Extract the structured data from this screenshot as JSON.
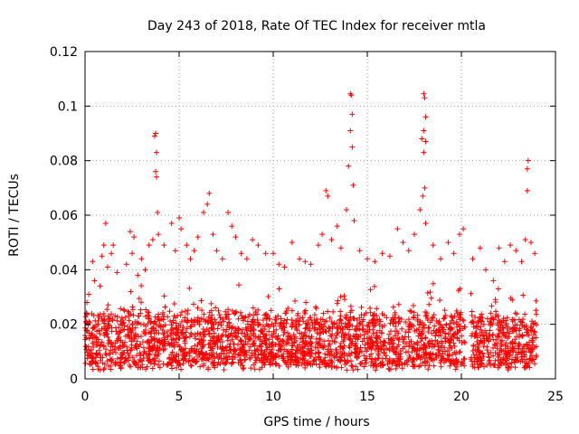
{
  "chart_data": {
    "type": "scatter",
    "title": "Day 243 of 2018, Rate Of TEC Index for receiver mtla",
    "xlabel": "GPS time / hours",
    "ylabel": "ROTI / TECUs",
    "xlim": [
      0,
      25
    ],
    "ylim": [
      0,
      0.12
    ],
    "x_ticks": [
      0,
      5,
      10,
      15,
      20,
      25
    ],
    "x_tick_labels": [
      "0",
      "5",
      "10",
      "15",
      "20",
      "25"
    ],
    "y_ticks": [
      0,
      0.02,
      0.04,
      0.06,
      0.08,
      0.1,
      0.12
    ],
    "y_tick_labels": [
      "0",
      "0.02",
      "0.04",
      "0.06",
      "0.08",
      "0.1",
      "0.12"
    ],
    "grid": true,
    "marker": "+",
    "color": "#ff0000",
    "data_gap_hours": [
      20.2,
      20.5
    ],
    "series": [
      {
        "name": "ROTI",
        "points": [
          [
            0.1,
            0.028
          ],
          [
            0.2,
            0.031
          ],
          [
            0.4,
            0.043
          ],
          [
            0.5,
            0.036
          ],
          [
            0.8,
            0.034
          ],
          [
            0.9,
            0.045
          ],
          [
            1.0,
            0.049
          ],
          [
            1.1,
            0.057
          ],
          [
            1.2,
            0.041
          ],
          [
            1.4,
            0.046
          ],
          [
            1.5,
            0.049
          ],
          [
            1.7,
            0.039
          ],
          [
            2.2,
            0.042
          ],
          [
            2.4,
            0.054
          ],
          [
            2.5,
            0.046
          ],
          [
            2.6,
            0.052
          ],
          [
            2.8,
            0.038
          ],
          [
            3.0,
            0.044
          ],
          [
            3.2,
            0.04
          ],
          [
            3.4,
            0.049
          ],
          [
            3.6,
            0.051
          ],
          [
            3.7,
            0.089
          ],
          [
            3.75,
            0.09
          ],
          [
            3.8,
            0.083
          ],
          [
            3.75,
            0.076
          ],
          [
            3.8,
            0.074
          ],
          [
            3.85,
            0.061
          ],
          [
            3.9,
            0.053
          ],
          [
            4.2,
            0.049
          ],
          [
            4.6,
            0.057
          ],
          [
            4.8,
            0.047
          ],
          [
            5.0,
            0.059
          ],
          [
            5.1,
            0.055
          ],
          [
            5.4,
            0.049
          ],
          [
            5.6,
            0.044
          ],
          [
            5.8,
            0.047
          ],
          [
            6.0,
            0.052
          ],
          [
            6.3,
            0.061
          ],
          [
            6.5,
            0.064
          ],
          [
            6.6,
            0.068
          ],
          [
            6.8,
            0.053
          ],
          [
            7.0,
            0.047
          ],
          [
            7.3,
            0.044
          ],
          [
            7.6,
            0.061
          ],
          [
            7.8,
            0.056
          ],
          [
            8.0,
            0.052
          ],
          [
            8.3,
            0.046
          ],
          [
            8.6,
            0.044
          ],
          [
            8.9,
            0.051
          ],
          [
            9.2,
            0.049
          ],
          [
            9.6,
            0.046
          ],
          [
            10.0,
            0.046
          ],
          [
            10.3,
            0.042
          ],
          [
            10.6,
            0.041
          ],
          [
            11.0,
            0.05
          ],
          [
            11.4,
            0.044
          ],
          [
            11.7,
            0.043
          ],
          [
            12.0,
            0.042
          ],
          [
            12.4,
            0.049
          ],
          [
            12.6,
            0.053
          ],
          [
            12.8,
            0.069
          ],
          [
            12.9,
            0.067
          ],
          [
            13.1,
            0.051
          ],
          [
            13.4,
            0.056
          ],
          [
            13.6,
            0.048
          ],
          [
            13.9,
            0.062
          ],
          [
            14.0,
            0.078
          ],
          [
            14.1,
            0.1045
          ],
          [
            14.15,
            0.104
          ],
          [
            14.2,
            0.097
          ],
          [
            14.1,
            0.091
          ],
          [
            14.2,
            0.085
          ],
          [
            14.25,
            0.071
          ],
          [
            14.3,
            0.058
          ],
          [
            14.6,
            0.047
          ],
          [
            15.0,
            0.044
          ],
          [
            15.4,
            0.043
          ],
          [
            15.8,
            0.046
          ],
          [
            16.2,
            0.045
          ],
          [
            16.6,
            0.055
          ],
          [
            16.9,
            0.05
          ],
          [
            17.2,
            0.047
          ],
          [
            17.5,
            0.053
          ],
          [
            17.8,
            0.062
          ],
          [
            17.9,
            0.088
          ],
          [
            18.0,
            0.1045
          ],
          [
            18.05,
            0.103
          ],
          [
            18.1,
            0.096
          ],
          [
            18.0,
            0.091
          ],
          [
            18.1,
            0.087
          ],
          [
            18.0,
            0.083
          ],
          [
            18.05,
            0.07
          ],
          [
            17.95,
            0.067
          ],
          [
            18.1,
            0.057
          ],
          [
            18.5,
            0.049
          ],
          [
            18.9,
            0.044
          ],
          [
            19.3,
            0.05
          ],
          [
            19.6,
            0.046
          ],
          [
            19.9,
            0.053
          ],
          [
            20.1,
            0.055
          ],
          [
            20.6,
            0.044
          ],
          [
            21.0,
            0.048
          ],
          [
            21.3,
            0.04
          ],
          [
            21.7,
            0.036
          ],
          [
            22.0,
            0.048
          ],
          [
            22.3,
            0.043
          ],
          [
            22.6,
            0.049
          ],
          [
            22.9,
            0.047
          ],
          [
            23.2,
            0.043
          ],
          [
            23.4,
            0.051
          ],
          [
            23.5,
            0.077
          ],
          [
            23.55,
            0.08
          ],
          [
            23.5,
            0.069
          ],
          [
            23.7,
            0.05
          ],
          [
            23.9,
            0.046
          ]
        ],
        "dense_band": {
          "x_range": [
            0,
            24
          ],
          "exclude_x_range": [
            20.2,
            20.5
          ],
          "typical_y_range": [
            0.005,
            0.03
          ],
          "approx_center": 0.016
        }
      }
    ]
  }
}
